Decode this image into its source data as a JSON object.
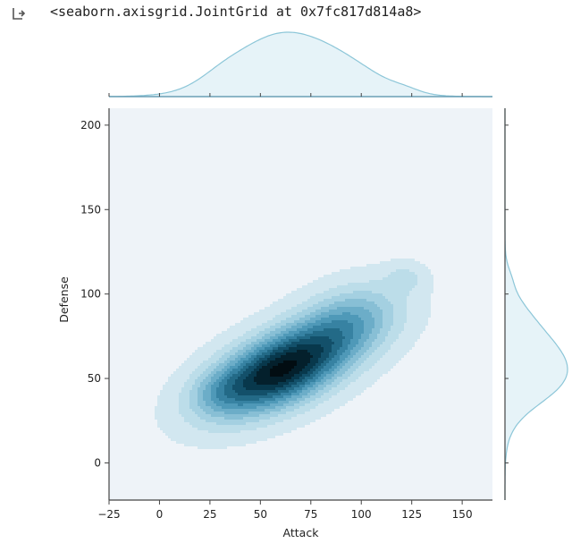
{
  "output": {
    "repr_text": "<seaborn.axisgrid.JointGrid at 0x7fc817d814a8>",
    "icon": "output-redirect-icon"
  },
  "chart_data": {
    "type": "kde-joint",
    "xlabel": "Attack",
    "ylabel": "Defense",
    "xlim": [
      -25,
      165
    ],
    "ylim": [
      -22,
      210
    ],
    "x_ticks": [
      -25,
      0,
      25,
      50,
      75,
      100,
      125,
      150
    ],
    "y_ticks": [
      0,
      50,
      100,
      150,
      200
    ],
    "colors": {
      "levels": [
        "#eef3f8",
        "#d2e7f0",
        "#bcdde9",
        "#a4d0e1",
        "#88bfd5",
        "#6cadc8",
        "#4f99b8",
        "#3782a2",
        "#236a87",
        "#13506a",
        "#08384c",
        "#04202c",
        "#020d12"
      ],
      "marginal_line": "#8cc6d8",
      "marginal_fill": "#e6f3f8",
      "axis": "#444444"
    },
    "kde_components": [
      {
        "mx": 60,
        "my": 55,
        "sx": 24,
        "sy": 18,
        "rho": 0.55,
        "w": 1.0
      },
      {
        "mx": 95,
        "my": 85,
        "sx": 18,
        "sy": 15,
        "rho": 0.3,
        "w": 0.32
      },
      {
        "mx": 122,
        "my": 110,
        "sx": 7,
        "sy": 6,
        "rho": 0.0,
        "w": 0.12
      },
      {
        "mx": 30,
        "my": 42,
        "sx": 10,
        "sy": 9,
        "rho": 0.2,
        "w": 0.14
      }
    ],
    "marginal_x": {
      "description": "density of Attack",
      "peak": 55
    },
    "marginal_y": {
      "description": "density of Defense",
      "peak": 57
    }
  }
}
